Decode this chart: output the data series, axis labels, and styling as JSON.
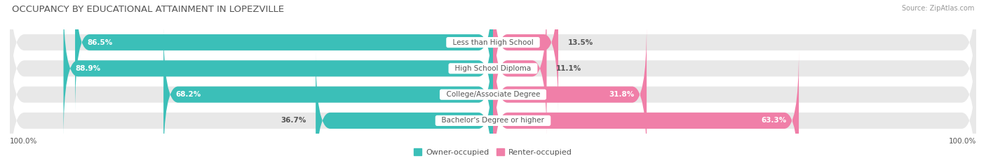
{
  "title": "OCCUPANCY BY EDUCATIONAL ATTAINMENT IN LOPEZVILLE",
  "source": "Source: ZipAtlas.com",
  "categories": [
    "Less than High School",
    "High School Diploma",
    "College/Associate Degree",
    "Bachelor's Degree or higher"
  ],
  "owner_values": [
    86.5,
    88.9,
    68.2,
    36.7
  ],
  "renter_values": [
    13.5,
    11.1,
    31.8,
    63.3
  ],
  "owner_color": "#3BBFB8",
  "renter_color": "#F07FA8",
  "bg_color": "#ffffff",
  "row_bg_color": "#e8e8e8",
  "title_color": "#555555",
  "source_color": "#999999",
  "value_inside_color": "#ffffff",
  "value_outside_color": "#555555",
  "label_color": "#555555",
  "title_fontsize": 9.5,
  "bar_value_fontsize": 7.5,
  "cat_label_fontsize": 7.5,
  "legend_fontsize": 8,
  "axis_tick_fontsize": 7.5,
  "bar_height": 0.62,
  "x_left_label": "100.0%",
  "x_right_label": "100.0%"
}
